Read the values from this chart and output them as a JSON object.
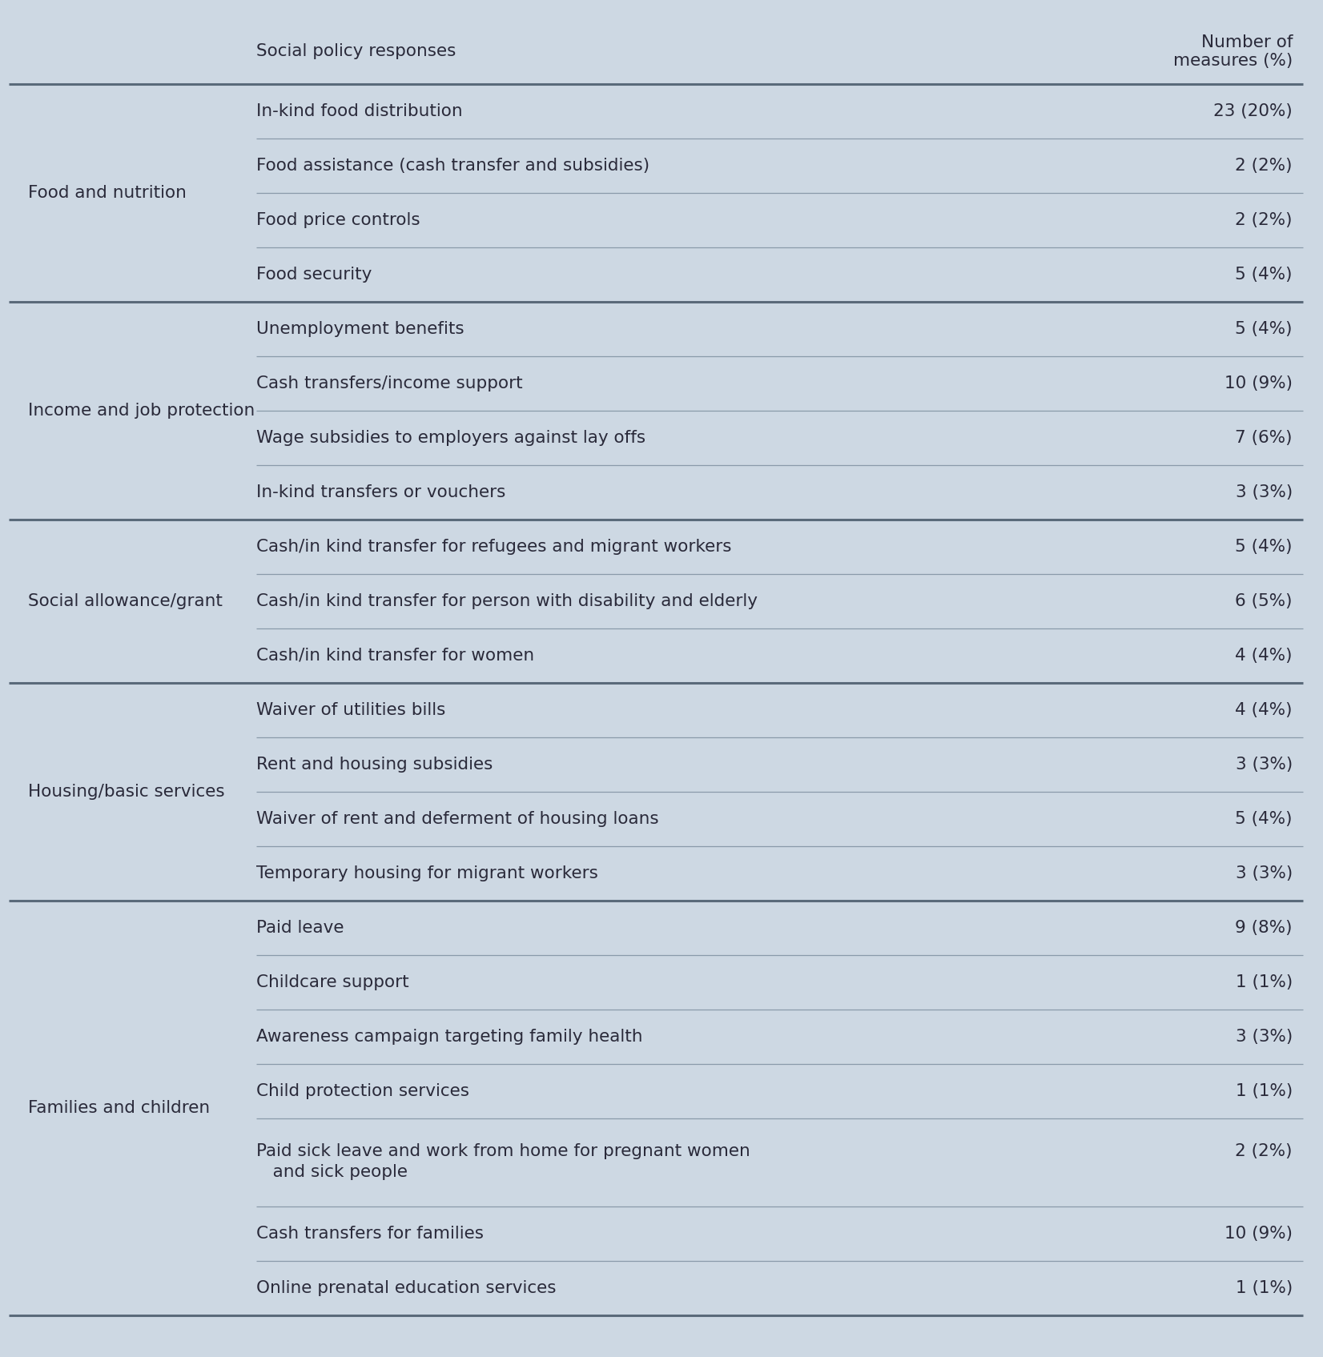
{
  "bg_color": "#cdd8e3",
  "text_color": "#2a2a3a",
  "fig_width": 16.52,
  "fig_height": 16.95,
  "col2_header": "Social policy responses",
  "col3_header": "Number of\nmeasures (%)",
  "sections": [
    {
      "category": "Food and nutrition",
      "rows": [
        {
          "policy": "In-kind food distribution",
          "measure": "23 (20%)",
          "tall": false
        },
        {
          "policy": "Food assistance (cash transfer and subsidies)",
          "measure": "2 (2%)",
          "tall": false
        },
        {
          "policy": "Food price controls",
          "measure": "2 (2%)",
          "tall": false
        },
        {
          "policy": "Food security",
          "measure": "5 (4%)",
          "tall": false
        }
      ]
    },
    {
      "category": "Income and job protection",
      "rows": [
        {
          "policy": "Unemployment benefits",
          "measure": "5 (4%)",
          "tall": false
        },
        {
          "policy": "Cash transfers/income support",
          "measure": "10 (9%)",
          "tall": false
        },
        {
          "policy": "Wage subsidies to employers against lay offs",
          "measure": "7 (6%)",
          "tall": false
        },
        {
          "policy": "In-kind transfers or vouchers",
          "measure": "3 (3%)",
          "tall": false
        }
      ]
    },
    {
      "category": "Social allowance/grant",
      "rows": [
        {
          "policy": "Cash/in kind transfer for refugees and migrant workers",
          "measure": "5 (4%)",
          "tall": false
        },
        {
          "policy": "Cash/in kind transfer for person with disability and elderly",
          "measure": "6 (5%)",
          "tall": false
        },
        {
          "policy": "Cash/in kind transfer for women",
          "measure": "4 (4%)",
          "tall": false
        }
      ]
    },
    {
      "category": "Housing/basic services",
      "rows": [
        {
          "policy": "Waiver of utilities bills",
          "measure": "4 (4%)",
          "tall": false
        },
        {
          "policy": "Rent and housing subsidies",
          "measure": "3 (3%)",
          "tall": false
        },
        {
          "policy": "Waiver of rent and deferment of housing loans",
          "measure": "5 (4%)",
          "tall": false
        },
        {
          "policy": "Temporary housing for migrant workers",
          "measure": "3 (3%)",
          "tall": false
        }
      ]
    },
    {
      "category": "Families and children",
      "rows": [
        {
          "policy": "Paid leave",
          "measure": "9 (8%)",
          "tall": false
        },
        {
          "policy": "Childcare support",
          "measure": "1 (1%)",
          "tall": false
        },
        {
          "policy": "Awareness campaign targeting family health",
          "measure": "3 (3%)",
          "tall": false
        },
        {
          "policy": "Child protection services",
          "measure": "1 (1%)",
          "tall": false
        },
        {
          "policy": "Paid sick leave and work from home for pregnant women\n   and sick people",
          "measure": "2 (2%)",
          "tall": true
        },
        {
          "policy": "Cash transfers for families",
          "measure": "10 (9%)",
          "tall": false
        },
        {
          "policy": "Online prenatal education services",
          "measure": "1 (1%)",
          "tall": false
        }
      ]
    }
  ],
  "header_line_color": "#5a6a7a",
  "thin_line_color": "#8a9aaa",
  "thick_line_color": "#5a6a7a",
  "font_size": 15.5,
  "header_font_size": 15.5
}
